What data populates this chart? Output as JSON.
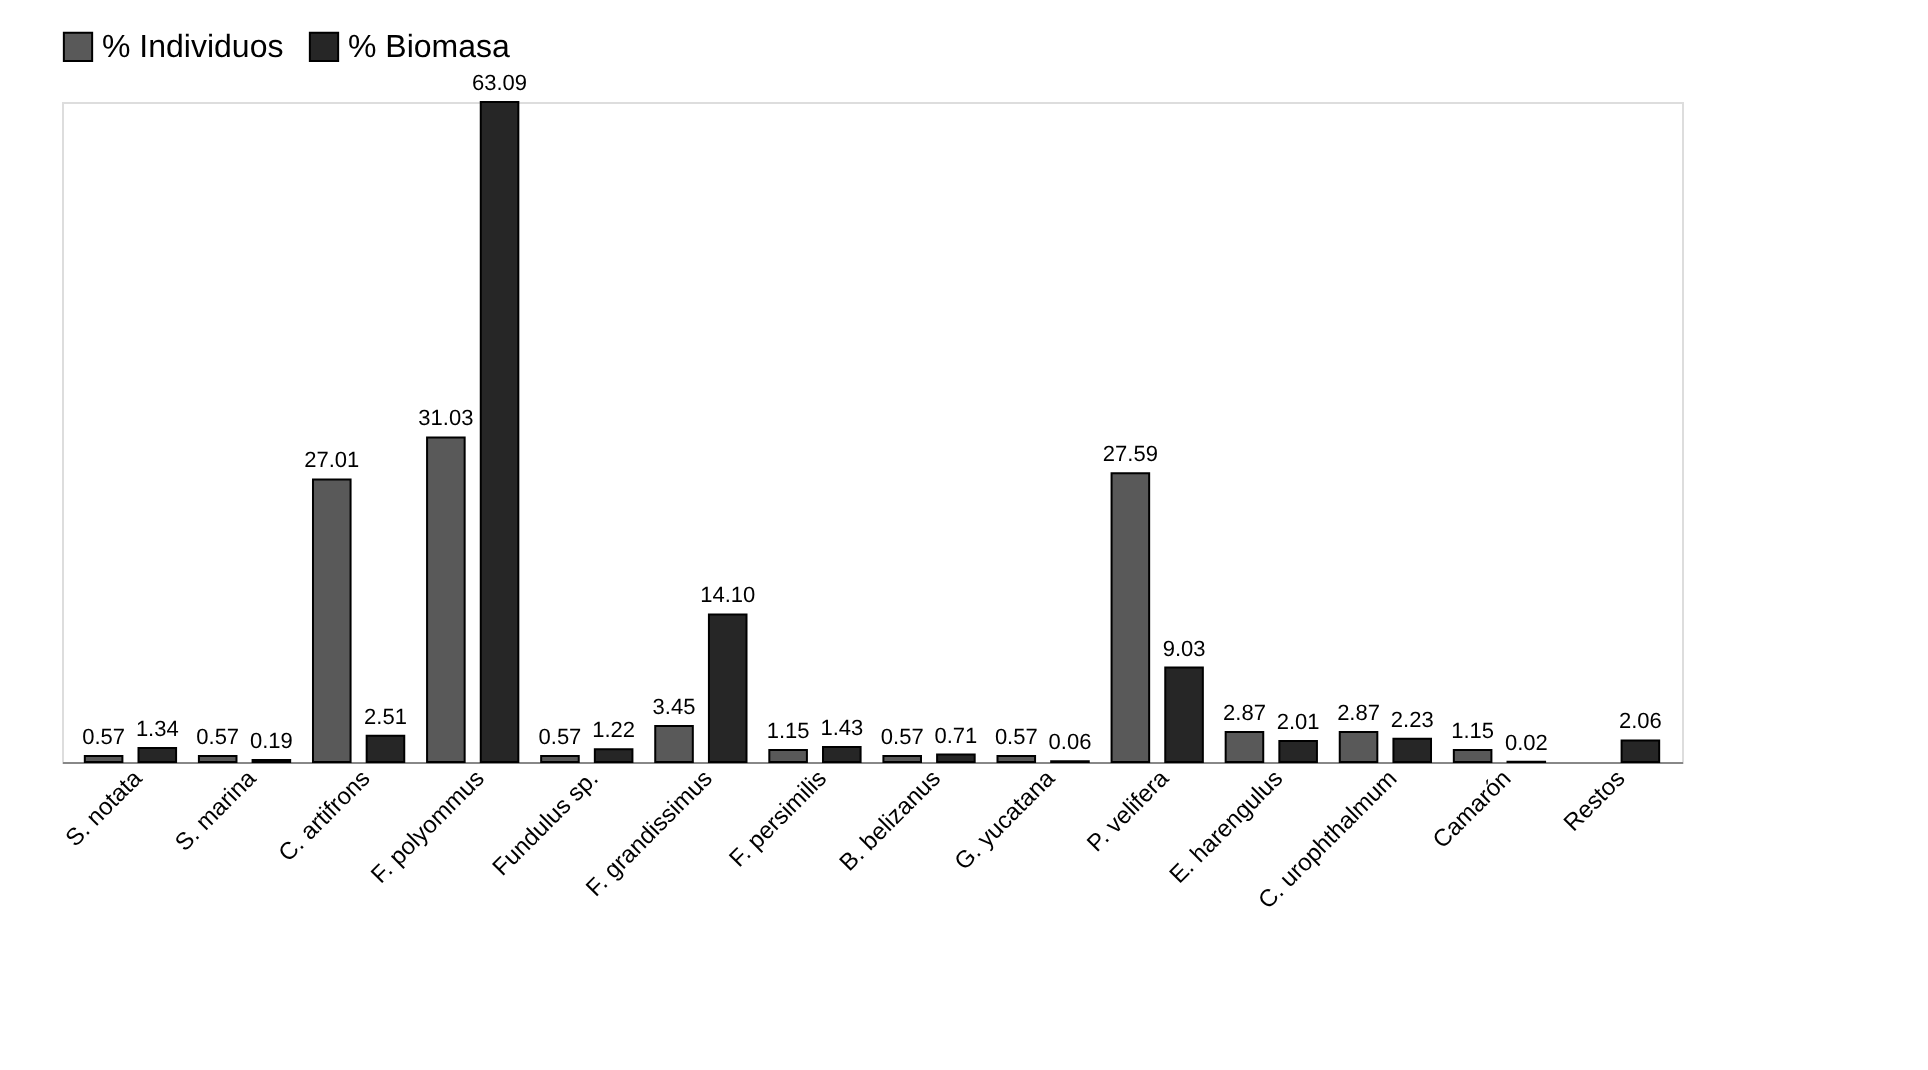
{
  "chart_data": {
    "type": "bar",
    "categories": [
      "S. notata",
      "S. marina",
      "C. artifrons",
      "F. polyommus",
      "Fundulus sp.",
      "F. grandissimus",
      "F. persimilis",
      "B. belizanus",
      "G. yucatana",
      "P. velifera",
      "E. harengulus",
      "C. urophthalmum",
      "Camarón",
      "Restos"
    ],
    "series": [
      {
        "name": "% Individuos",
        "color": "#595959",
        "values": [
          0.57,
          0.57,
          27.01,
          31.03,
          0.57,
          3.45,
          1.15,
          0.57,
          0.57,
          27.59,
          2.87,
          2.87,
          1.15,
          null
        ],
        "value_labels": [
          "0.57",
          "0.57",
          "27.01",
          "31.03",
          "0.57",
          "3.45",
          "1.15",
          "0.57",
          "0.57",
          "27.59",
          "2.87",
          "2.87",
          "1.15",
          null
        ]
      },
      {
        "name": "% Biomasa",
        "color": "#262626",
        "values": [
          1.34,
          0.19,
          2.51,
          63.09,
          1.22,
          14.1,
          1.43,
          0.71,
          0.06,
          9.03,
          2.01,
          2.23,
          0.02,
          2.06
        ],
        "value_labels": [
          "1.34",
          "0.19",
          "2.51",
          "63.09",
          "1.22",
          "14.10",
          "1.43",
          "0.71",
          "0.06",
          "9.03",
          "2.01",
          "2.23",
          "0.02",
          "2.06"
        ]
      }
    ],
    "legend": "top",
    "tick_labels": "x",
    "grid": false
  }
}
